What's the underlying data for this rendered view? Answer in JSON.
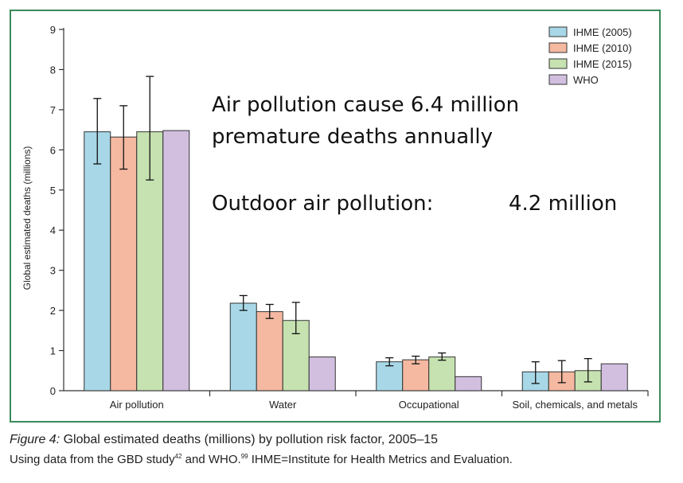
{
  "chart_data": {
    "type": "bar",
    "title": "",
    "xlabel": "",
    "ylabel": "Global estimated deaths (millions)",
    "ylim": [
      0,
      9
    ],
    "yticks": [
      "0",
      "1",
      "2",
      "3",
      "4",
      "5",
      "6",
      "7",
      "8",
      "9"
    ],
    "categories": [
      "Air pollution",
      "Water",
      "Occupational",
      "Soil, chemicals, and metals"
    ],
    "series": [
      {
        "name": "IHME (2005)",
        "color": "#a8d8e8",
        "values": [
          6.45,
          2.18,
          0.72,
          0.47
        ],
        "error_low": [
          5.65,
          2.0,
          0.62,
          0.18
        ],
        "error_high": [
          7.28,
          2.37,
          0.82,
          0.72
        ]
      },
      {
        "name": "IHME (2010)",
        "color": "#f5b8a0",
        "values": [
          6.32,
          1.97,
          0.77,
          0.47
        ],
        "error_low": [
          5.52,
          1.8,
          0.67,
          0.2
        ],
        "error_high": [
          7.1,
          2.15,
          0.86,
          0.75
        ]
      },
      {
        "name": "IHME (2015)",
        "color": "#c6e2b0",
        "values": [
          6.45,
          1.75,
          0.84,
          0.5
        ],
        "error_low": [
          5.25,
          1.42,
          0.76,
          0.22
        ],
        "error_high": [
          7.83,
          2.2,
          0.94,
          0.8
        ]
      },
      {
        "name": "WHO",
        "color": "#d2bfe0",
        "values": [
          6.48,
          0.84,
          0.35,
          0.67
        ]
      }
    ],
    "legend_position": "top-right",
    "grid": false,
    "annotations": {
      "line1": "Air pollution cause 6.4 million",
      "line2": "premature deaths annually",
      "line3_label": "Outdoor air pollution:",
      "line3_value": "4.2 million"
    }
  },
  "caption": {
    "figure_label": "Figure 4:",
    "title": "Global estimated deaths (millions) by pollution risk factor, 2005–15",
    "line2_part1": "Using data from the GBD study",
    "ref1": "42",
    "line2_part2": " and WHO.",
    "ref2": "99",
    "line2_part3": " IHME=Institute for Health Metrics and Evaluation."
  },
  "colors": {
    "frame_border": "#3a8a5a",
    "bar_outline": "#333333"
  }
}
